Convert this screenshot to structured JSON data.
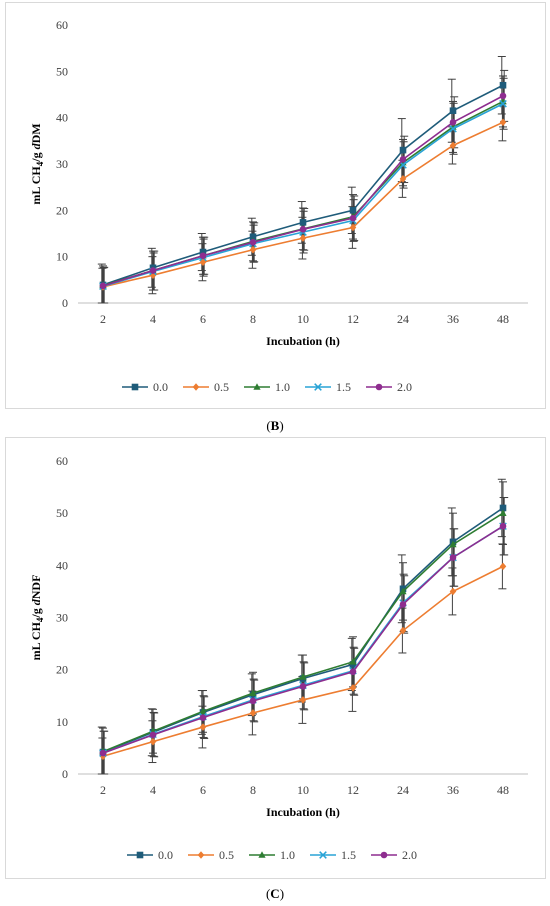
{
  "colors": {
    "0.0": "#1f5c7a",
    "0.5": "#ed7d31",
    "1.0": "#2e7d32",
    "1.5": "#29a3d6",
    "2.0": "#8e2d8f"
  },
  "captions": {
    "b": "B",
    "c": "C"
  },
  "chart_data": [
    {
      "type": "line",
      "panel": "B",
      "title": "",
      "xlabel": "Incubation (h)",
      "ylabel": "mL CH4/g dDM",
      "ylabel_parts": {
        "pre": "mL CH",
        "sub": "4",
        "mid": "/g ",
        "ital": "d",
        "post": "DM"
      },
      "categories": [
        "2",
        "4",
        "6",
        "8",
        "10",
        "12",
        "24",
        "36",
        "48"
      ],
      "ylim": [
        0,
        60
      ],
      "yticks": [
        "0",
        "10",
        "20",
        "30",
        "40",
        "50",
        "60"
      ],
      "grid": false,
      "legend": "bottom",
      "series": [
        {
          "name": "0.0",
          "marker": "square",
          "values": [
            3.9,
            7.6,
            11.0,
            14.3,
            17.4,
            20.0,
            33.0,
            41.5,
            47.0
          ],
          "err": [
            4.5,
            4.2,
            4.0,
            4.0,
            4.5,
            5.0,
            6.8,
            6.8,
            6.2
          ]
        },
        {
          "name": "0.5",
          "marker": "diamond",
          "values": [
            3.5,
            6.0,
            8.8,
            11.5,
            14.0,
            16.3,
            26.8,
            34.0,
            39.0
          ],
          "err": [
            4.0,
            4.0,
            4.0,
            4.0,
            4.5,
            4.5,
            4.0,
            4.0,
            4.0
          ]
        },
        {
          "name": "1.0",
          "marker": "triangle",
          "values": [
            3.8,
            7.0,
            10.2,
            13.3,
            16.0,
            18.6,
            30.3,
            38.0,
            43.5
          ],
          "err": [
            4.2,
            4.2,
            4.0,
            4.2,
            4.5,
            4.8,
            5.0,
            5.5,
            5.5
          ]
        },
        {
          "name": "1.5",
          "marker": "x",
          "values": [
            3.6,
            6.8,
            9.8,
            12.8,
            15.3,
            17.8,
            29.8,
            37.6,
            43.0
          ],
          "err": [
            4.0,
            4.0,
            4.0,
            4.0,
            4.5,
            4.5,
            5.0,
            5.5,
            5.5
          ]
        },
        {
          "name": "2.0",
          "marker": "circle",
          "values": [
            3.7,
            7.0,
            10.2,
            13.1,
            15.9,
            18.3,
            31.0,
            39.0,
            44.7
          ],
          "err": [
            4.0,
            4.2,
            4.0,
            4.2,
            4.5,
            4.8,
            5.0,
            5.5,
            5.5
          ]
        }
      ]
    },
    {
      "type": "line",
      "panel": "C",
      "title": "",
      "xlabel": "Incubation (h)",
      "ylabel": "mL CH4/g dNDF",
      "ylabel_parts": {
        "pre": "mL CH",
        "sub": "4",
        "mid": "/g ",
        "ital": "d",
        "post": "NDF"
      },
      "categories": [
        "2",
        "4",
        "6",
        "8",
        "10",
        "12",
        "24",
        "36",
        "48"
      ],
      "ylim": [
        0,
        60
      ],
      "yticks": [
        "0",
        "10",
        "20",
        "30",
        "40",
        "50",
        "60"
      ],
      "grid": false,
      "legend": "bottom",
      "series": [
        {
          "name": "0.0",
          "marker": "square",
          "values": [
            4.2,
            8.0,
            11.8,
            15.2,
            18.3,
            21.0,
            35.5,
            44.5,
            51.0
          ],
          "err": [
            4.8,
            4.5,
            4.2,
            4.0,
            4.5,
            5.0,
            6.5,
            6.5,
            5.5
          ]
        },
        {
          "name": "0.5",
          "marker": "diamond",
          "values": [
            3.4,
            6.2,
            9.0,
            11.7,
            14.2,
            16.5,
            27.5,
            35.0,
            39.8
          ],
          "err": [
            3.5,
            4.0,
            4.0,
            4.2,
            4.5,
            4.5,
            4.3,
            4.5,
            4.3
          ]
        },
        {
          "name": "1.0",
          "marker": "triangle",
          "values": [
            4.3,
            8.2,
            12.0,
            15.5,
            18.6,
            21.5,
            35.0,
            44.0,
            50.0
          ],
          "err": [
            4.5,
            4.2,
            4.0,
            4.0,
            4.2,
            4.8,
            5.5,
            6.0,
            6.0
          ]
        },
        {
          "name": "1.5",
          "marker": "x",
          "values": [
            4.0,
            7.6,
            11.0,
            14.2,
            17.0,
            19.8,
            32.8,
            41.5,
            47.5
          ],
          "err": [
            4.2,
            4.2,
            4.0,
            4.0,
            4.5,
            4.5,
            5.5,
            5.5,
            5.5
          ]
        },
        {
          "name": "2.0",
          "marker": "circle",
          "values": [
            4.0,
            7.5,
            10.8,
            14.0,
            16.8,
            19.6,
            32.5,
            41.5,
            47.5
          ],
          "err": [
            4.2,
            4.2,
            4.0,
            4.0,
            4.5,
            4.5,
            5.5,
            5.5,
            5.5
          ]
        }
      ]
    }
  ]
}
